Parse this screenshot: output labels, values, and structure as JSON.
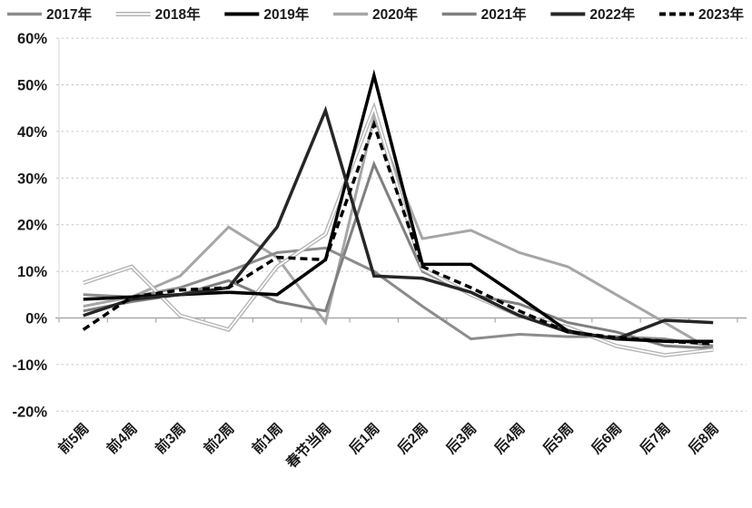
{
  "chart": {
    "background": "#ffffff",
    "colors": {
      "grid": "#c6c6c6",
      "axis": "#a8a8a8",
      "text": "#1a1a1a"
    }
  },
  "chart_data": {
    "type": "line",
    "title": "",
    "categories": [
      "前5周",
      "前4周",
      "前3周",
      "前2周",
      "前1周",
      "春节当周",
      "后1周",
      "后2周",
      "后3周",
      "后4周",
      "后5周",
      "后6周",
      "后7周",
      "后8周"
    ],
    "series": [
      {
        "name": "2017年",
        "color": "#8c8c8c",
        "width": 3,
        "style": "solid",
        "values": [
          5,
          4.5,
          6.5,
          10,
          14,
          15,
          10,
          2.5,
          -4.5,
          -3.5,
          -4,
          -4,
          -4.5,
          -6
        ]
      },
      {
        "name": "2018年",
        "color": "#b3b3b3",
        "width": 4.5,
        "style": "double",
        "values": [
          7.5,
          11,
          0.5,
          -2.5,
          11,
          18,
          45,
          10.5,
          5,
          0.5,
          -2,
          -6,
          -8,
          -6.8
        ]
      },
      {
        "name": "2019年",
        "color": "#000000",
        "width": 3.5,
        "style": "solid",
        "values": [
          4,
          4.5,
          5,
          5.5,
          5,
          12.5,
          52,
          11.5,
          11.5,
          4.5,
          -2.8,
          -4.5,
          -5,
          -5
        ]
      },
      {
        "name": "2020年",
        "color": "#a6a6a6",
        "width": 3,
        "style": "solid",
        "values": [
          2.5,
          4.5,
          9,
          19.5,
          13,
          -1,
          43,
          17,
          18.8,
          14,
          11,
          5,
          -1,
          -7
        ]
      },
      {
        "name": "2021年",
        "color": "#7f7f7f",
        "width": 3,
        "style": "solid",
        "values": [
          1.5,
          3.5,
          5,
          8,
          3.5,
          1.5,
          33,
          10,
          5,
          3,
          -1,
          -3,
          -6,
          -6.5
        ]
      },
      {
        "name": "2022年",
        "color": "#262626",
        "width": 3.5,
        "style": "solid",
        "values": [
          0.5,
          4,
          5,
          6.5,
          19.5,
          44.5,
          9,
          8.5,
          5.5,
          0.5,
          -3,
          -4.5,
          -0.5,
          -1
        ]
      },
      {
        "name": "2023年",
        "color": "#000000",
        "width": 3.5,
        "style": "dashed",
        "values": [
          -2.5,
          4.5,
          6,
          6.5,
          13,
          12.5,
          41.5,
          11,
          6.5,
          1.5,
          -3,
          -4.2,
          -5,
          -5.5
        ]
      }
    ],
    "ylim": [
      -20,
      60
    ],
    "ytick_values": [
      60,
      50,
      40,
      30,
      20,
      10,
      0,
      -10,
      -20
    ],
    "ytick_suffix": "%",
    "xlabel": "",
    "ylabel": "",
    "grid": "horizontal-dashed",
    "legend_position": "top",
    "axis_cross_value": 0,
    "x_label_rotation": -45
  }
}
